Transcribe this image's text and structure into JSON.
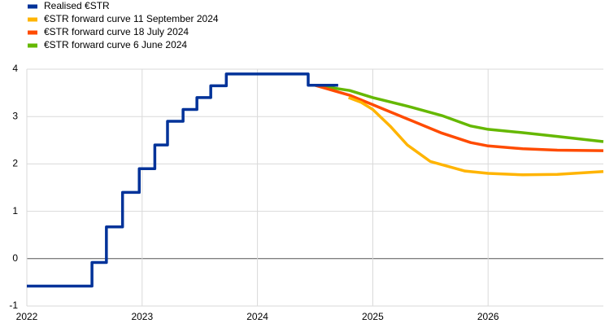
{
  "chart_data": {
    "type": "line",
    "xlim": [
      2022,
      2027
    ],
    "xticks": [
      2022,
      2023,
      2024,
      2025,
      2026
    ],
    "ylim": [
      -1,
      4
    ],
    "yticks": [
      -1,
      0,
      1,
      2,
      3,
      4
    ],
    "grid": true,
    "legend": "top-left",
    "series": [
      {
        "name": "Realised €STR",
        "color": "#003299",
        "x": [
          2022,
          2022.565,
          2022.565,
          2022.69,
          2022.69,
          2022.83,
          2022.83,
          2022.975,
          2022.975,
          2023.11,
          2023.11,
          2023.22,
          2023.22,
          2023.355,
          2023.355,
          2023.475,
          2023.475,
          2023.595,
          2023.595,
          2023.73,
          2023.73,
          2024.44,
          2024.44,
          2024.7
        ],
        "values": [
          -0.58,
          -0.58,
          -0.08,
          -0.08,
          0.67,
          0.67,
          1.4,
          1.4,
          1.9,
          1.9,
          2.4,
          2.4,
          2.9,
          2.9,
          3.15,
          3.15,
          3.4,
          3.4,
          3.65,
          3.65,
          3.9,
          3.9,
          3.66,
          3.66
        ]
      },
      {
        "name": "€STR forward  curve  11 September 2024",
        "color": "#ffb400",
        "x": [
          2024.79,
          2024.9,
          2025.0,
          2025.15,
          2025.3,
          2025.5,
          2025.8,
          2026.0,
          2026.3,
          2026.6,
          2027
        ],
        "values": [
          3.4,
          3.3,
          3.15,
          2.8,
          2.4,
          2.05,
          1.85,
          1.8,
          1.77,
          1.78,
          1.84
        ]
      },
      {
        "name": "€STR forward  curve  18 July 2024",
        "color": "#ff4b00",
        "x": [
          2024.5,
          2024.8,
          2025.0,
          2025.3,
          2025.6,
          2025.85,
          2026.0,
          2026.3,
          2026.6,
          2027
        ],
        "values": [
          3.66,
          3.45,
          3.25,
          2.95,
          2.65,
          2.45,
          2.38,
          2.32,
          2.29,
          2.28
        ]
      },
      {
        "name": "€STR forward  curve  6 June 2024",
        "color": "#65b800",
        "x": [
          2024.5,
          2024.8,
          2025.0,
          2025.3,
          2025.6,
          2025.85,
          2026.0,
          2026.3,
          2026.6,
          2027
        ],
        "values": [
          3.66,
          3.55,
          3.4,
          3.22,
          3.02,
          2.8,
          2.73,
          2.66,
          2.58,
          2.47
        ]
      }
    ]
  }
}
